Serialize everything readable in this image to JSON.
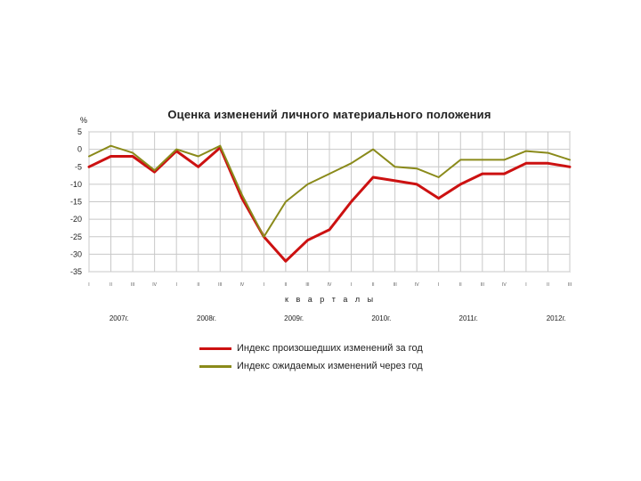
{
  "chart_data": {
    "type": "line",
    "title": "Оценка изменений личного материального положения",
    "ylabel": "%",
    "xlabel": "к в а р т а л ы",
    "ylim": [
      -35,
      5
    ],
    "yticks": [
      "5",
      "0",
      "-5",
      "-10",
      "-15",
      "-20",
      "-25",
      "-30",
      "-35"
    ],
    "grid": true,
    "legend_position": "bottom",
    "categories": [
      "I",
      "II",
      "III",
      "IV",
      "I",
      "II",
      "III",
      "IV",
      "I",
      "II",
      "III",
      "IV",
      "I",
      "II",
      "III",
      "IV",
      "I",
      "II",
      "III",
      "IV",
      "I",
      "II",
      "III"
    ],
    "years": [
      {
        "label": "2007г.",
        "start": 0
      },
      {
        "label": "2008г.",
        "start": 4
      },
      {
        "label": "2009г.",
        "start": 8
      },
      {
        "label": "2010г.",
        "start": 12
      },
      {
        "label": "2011г.",
        "start": 16
      },
      {
        "label": "2012г.",
        "start": 20
      }
    ],
    "series": [
      {
        "name": "Индекс произошедших изменений за год",
        "color": "#cc1111",
        "values": [
          -5,
          -2,
          -2,
          -6.5,
          -0.5,
          -5,
          0.5,
          -14,
          -25,
          -32,
          -26,
          -23,
          -15,
          -8,
          -9,
          -10,
          -14,
          -10,
          -7,
          -7,
          -4,
          -4,
          -5
        ]
      },
      {
        "name": "Индекс ожидаемых изменений через год",
        "color": "#8a8a1a",
        "values": [
          -2,
          1,
          -1,
          -6,
          0,
          -2,
          1,
          -13,
          -25,
          -15,
          -10,
          -7,
          -4,
          0,
          -5,
          -5.5,
          -8,
          -3,
          -3,
          -3,
          -0.5,
          -1,
          -3
        ]
      }
    ]
  }
}
